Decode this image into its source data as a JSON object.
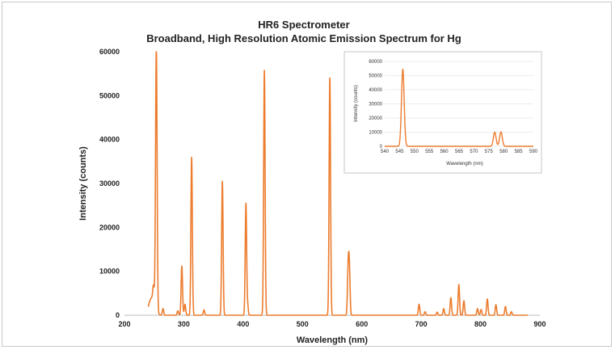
{
  "chart_data": [
    {
      "type": "line",
      "title": "HR6 Spectrometer",
      "subtitle": "Broadband, High Resolution Atomic Emission Spectrum for Hg",
      "xlabel": "Wavelength (nm)",
      "ylabel": "Intensity (counts)",
      "xlim": [
        200,
        900
      ],
      "ylim": [
        0,
        60000
      ],
      "xticks": [
        200,
        300,
        400,
        500,
        600,
        700,
        800,
        900
      ],
      "yticks": [
        0,
        10000,
        20000,
        30000,
        40000,
        50000,
        60000
      ],
      "grid": false,
      "color": "#ec7c2e",
      "baseline_range": [
        240,
        880
      ],
      "peaks": [
        {
          "x": 246,
          "y": 4000,
          "w": 5
        },
        {
          "x": 249,
          "y": 3500,
          "w": 1.2
        },
        {
          "x": 253.7,
          "y": 60000,
          "w": 1.3
        },
        {
          "x": 265,
          "y": 1500,
          "w": 1.2
        },
        {
          "x": 290,
          "y": 1000,
          "w": 1.2
        },
        {
          "x": 296.7,
          "y": 11200,
          "w": 1.2
        },
        {
          "x": 302,
          "y": 2500,
          "w": 1.2
        },
        {
          "x": 313.2,
          "y": 36000,
          "w": 1.2
        },
        {
          "x": 334,
          "y": 1200,
          "w": 1.2
        },
        {
          "x": 365,
          "y": 30500,
          "w": 1.2
        },
        {
          "x": 404.7,
          "y": 25500,
          "w": 1.2
        },
        {
          "x": 407.8,
          "y": 2000,
          "w": 1.0
        },
        {
          "x": 435.8,
          "y": 55800,
          "w": 1.2
        },
        {
          "x": 546.1,
          "y": 54200,
          "w": 1.2
        },
        {
          "x": 577,
          "y": 10300,
          "w": 1.2
        },
        {
          "x": 579,
          "y": 10300,
          "w": 1.2
        },
        {
          "x": 696.5,
          "y": 2500,
          "w": 1.2
        },
        {
          "x": 706.7,
          "y": 800,
          "w": 1.2
        },
        {
          "x": 727,
          "y": 700,
          "w": 1.2
        },
        {
          "x": 738,
          "y": 1500,
          "w": 1.2
        },
        {
          "x": 750,
          "y": 4000,
          "w": 1.2
        },
        {
          "x": 763.5,
          "y": 7000,
          "w": 1.2
        },
        {
          "x": 772,
          "y": 3300,
          "w": 1.2
        },
        {
          "x": 795,
          "y": 1500,
          "w": 1.2
        },
        {
          "x": 801,
          "y": 1300,
          "w": 1.2
        },
        {
          "x": 811.5,
          "y": 3700,
          "w": 1.2
        },
        {
          "x": 826,
          "y": 2400,
          "w": 1.2
        },
        {
          "x": 842,
          "y": 2000,
          "w": 1.2
        },
        {
          "x": 852,
          "y": 800,
          "w": 1.2
        }
      ]
    },
    {
      "type": "line",
      "title": "",
      "xlabel": "Wavelength (nm)",
      "ylabel": "Intensity (counts)",
      "xlim": [
        540,
        590
      ],
      "ylim": [
        0,
        60000
      ],
      "xticks": [
        540,
        545,
        550,
        555,
        560,
        565,
        570,
        575,
        580,
        585,
        590
      ],
      "yticks": [
        0,
        10000,
        20000,
        30000,
        40000,
        50000,
        60000
      ],
      "grid": true,
      "color": "#ec7c2e",
      "peaks": [
        {
          "x": 546.1,
          "y": 54500,
          "w": 0.45
        },
        {
          "x": 577.0,
          "y": 10000,
          "w": 0.45
        },
        {
          "x": 579.1,
          "y": 10200,
          "w": 0.45
        }
      ]
    }
  ]
}
